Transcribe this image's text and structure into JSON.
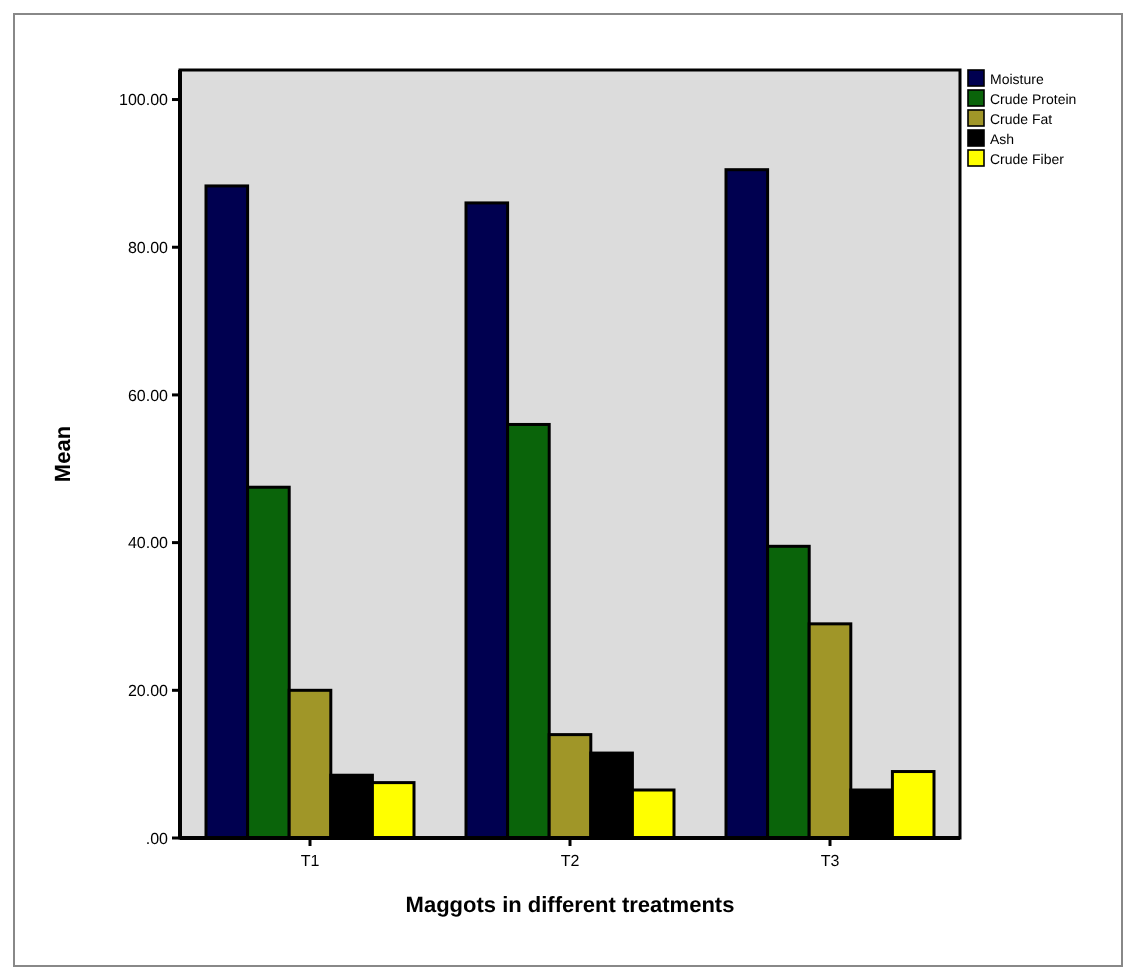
{
  "chart_data": {
    "type": "bar",
    "xlabel": "Maggots in different treatments",
    "ylabel": "Mean",
    "categories": [
      "T1",
      "T2",
      "T3"
    ],
    "series": [
      {
        "name": "Moisture",
        "color": "#000050",
        "values": [
          88.3,
          86,
          90.5
        ]
      },
      {
        "name": "Crude Protein",
        "color": "#0a640a",
        "values": [
          47.5,
          56,
          39.5
        ]
      },
      {
        "name": "Crude Fat",
        "color": "#a09628",
        "values": [
          20,
          14,
          29
        ]
      },
      {
        "name": "Ash",
        "color": "#000000",
        "values": [
          8.5,
          11.5,
          6.5
        ]
      },
      {
        "name": "Crude Fiber",
        "color": "#ffff00",
        "values": [
          7.5,
          6.5,
          9
        ]
      }
    ],
    "ylim": [
      0,
      104
    ],
    "yticks": [
      {
        "value": 0,
        "label": ".00"
      },
      {
        "value": 20,
        "label": "20.00"
      },
      {
        "value": 40,
        "label": "40.00"
      },
      {
        "value": 60,
        "label": "60.00"
      },
      {
        "value": 80,
        "label": "80.00"
      },
      {
        "value": 100,
        "label": "100.00"
      }
    ],
    "grid": false,
    "legend": "top right"
  }
}
